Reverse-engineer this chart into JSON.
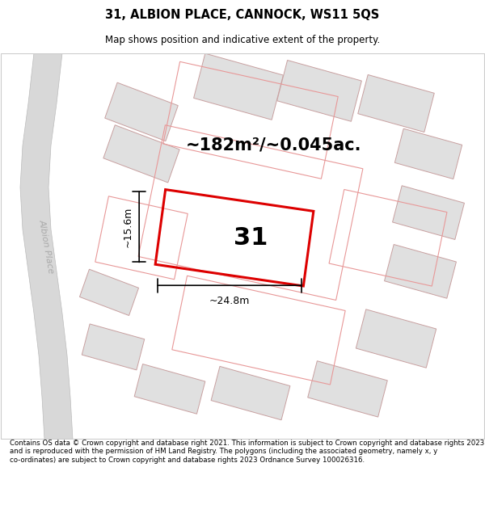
{
  "title": "31, ALBION PLACE, CANNOCK, WS11 5QS",
  "subtitle": "Map shows position and indicative extent of the property.",
  "footer": "Contains OS data © Crown copyright and database right 2021. This information is subject to Crown copyright and database rights 2023 and is reproduced with the permission of HM Land Registry. The polygons (including the associated geometry, namely x, y co-ordinates) are subject to Crown copyright and database rights 2023 Ordnance Survey 100026316.",
  "area_text": "~182m²/~0.045ac.",
  "number_label": "31",
  "dim_width": "~24.8m",
  "dim_height": "~15.6m",
  "road_label": "Albion Place",
  "main_plot_color": "#dd0000",
  "building_fill": "#e0e0e0",
  "building_edge": "#c8a0a0",
  "road_fill": "#d8d8d8",
  "road_edge": "#bbbbbb",
  "bg_color": "#f5f5f3"
}
